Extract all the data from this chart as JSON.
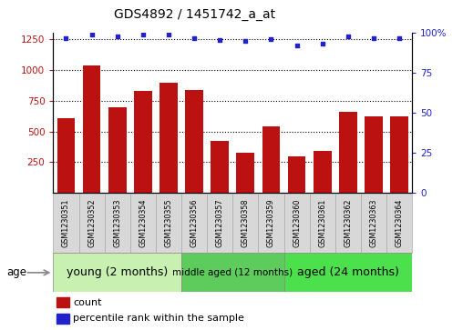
{
  "title": "GDS4892 / 1451742_a_at",
  "samples": [
    "GSM1230351",
    "GSM1230352",
    "GSM1230353",
    "GSM1230354",
    "GSM1230355",
    "GSM1230356",
    "GSM1230357",
    "GSM1230358",
    "GSM1230359",
    "GSM1230360",
    "GSM1230361",
    "GSM1230362",
    "GSM1230363",
    "GSM1230364"
  ],
  "counts": [
    610,
    1040,
    700,
    830,
    895,
    840,
    420,
    330,
    540,
    295,
    345,
    660,
    620,
    625
  ],
  "percentile_ranks": [
    96.5,
    99,
    98,
    99,
    99,
    97,
    95.5,
    95,
    96,
    92.5,
    93.5,
    98,
    97,
    97
  ],
  "groups": [
    {
      "label": "young (2 months)",
      "start": 0,
      "end": 5,
      "color": "#c8f0b0"
    },
    {
      "label": "middle aged (12 months)",
      "start": 5,
      "end": 9,
      "color": "#5dcc5d"
    },
    {
      "label": "aged (24 months)",
      "start": 9,
      "end": 14,
      "color": "#4de04d"
    }
  ],
  "ylim_left": [
    0,
    1300
  ],
  "ylim_right": [
    0,
    100
  ],
  "yticks_left": [
    250,
    500,
    750,
    1000,
    1250
  ],
  "yticks_right": [
    0,
    25,
    50,
    75,
    100
  ],
  "bar_color": "#bb1111",
  "dot_color": "#2222cc",
  "bg_plot": "#ffffff",
  "label_box_color": "#d8d8d8"
}
